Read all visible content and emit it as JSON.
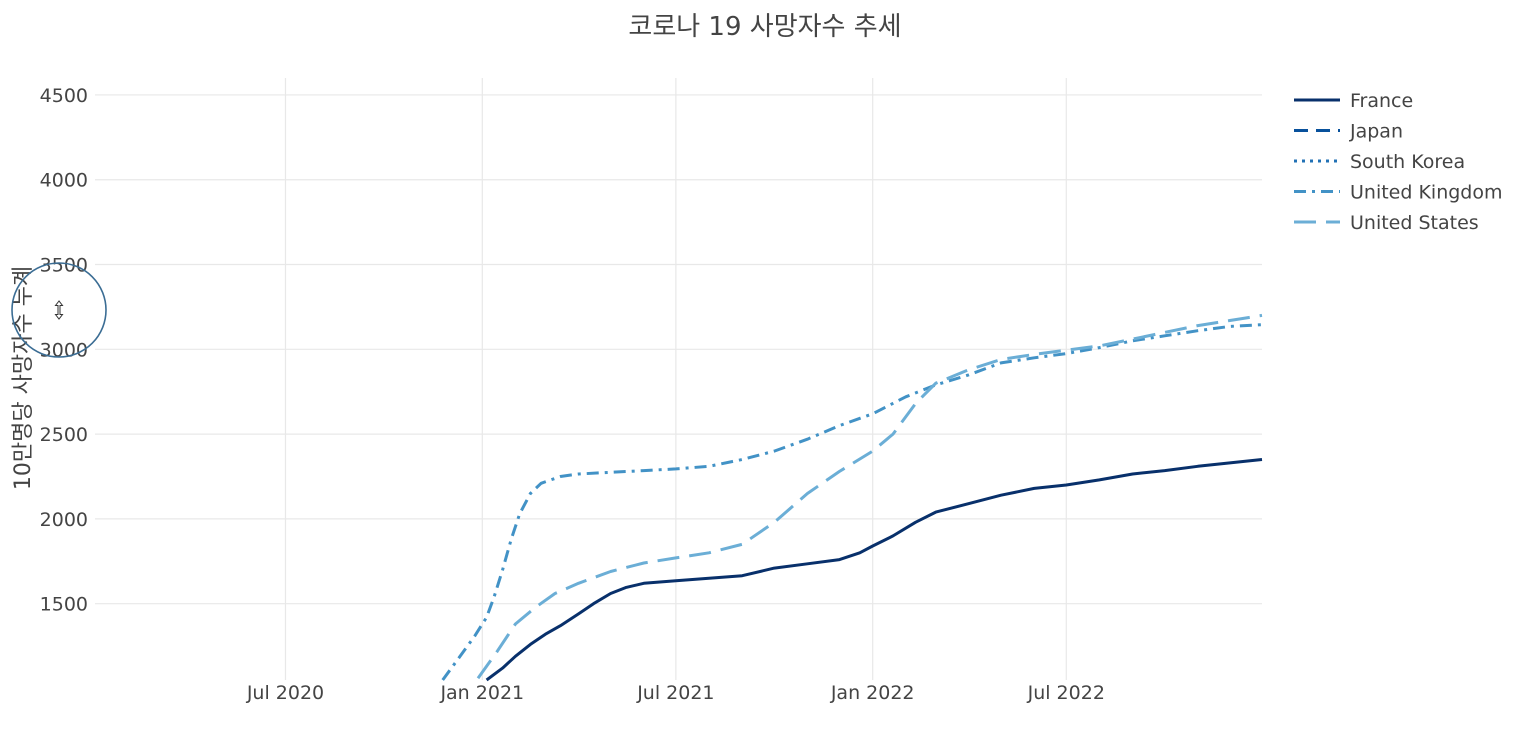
{
  "chart_data": {
    "type": "line",
    "title": "코로나 19 사망자수 추세",
    "xlabel": "",
    "ylabel": "10만명당 사망자수 누계",
    "x_axis": {
      "type": "date",
      "range": [
        "2020-03-01",
        "2022-12-31"
      ],
      "ticks": [
        {
          "value": "2020-07-01",
          "label": "Jul 2020"
        },
        {
          "value": "2021-01-01",
          "label": "Jan 2021"
        },
        {
          "value": "2021-07-01",
          "label": "Jul 2021"
        },
        {
          "value": "2022-01-01",
          "label": "Jan 2022"
        },
        {
          "value": "2022-07-01",
          "label": "Jul 2022"
        }
      ]
    },
    "y_axis": {
      "range": [
        1050,
        4600
      ],
      "ticks": [
        1500,
        2000,
        2500,
        3000,
        3500,
        4000,
        4500
      ],
      "tick_labels": [
        "1500",
        "2000",
        "2500",
        "3000",
        "3500",
        "4000",
        "4500"
      ]
    },
    "grid": true,
    "legend_position": "top-right",
    "series": [
      {
        "name": "France",
        "color": "#08306b",
        "dash": "solid",
        "points": [
          [
            "2021-01-05",
            1050
          ],
          [
            "2021-01-20",
            1120
          ],
          [
            "2021-02-01",
            1190
          ],
          [
            "2021-02-15",
            1260
          ],
          [
            "2021-03-01",
            1320
          ],
          [
            "2021-03-15",
            1370
          ],
          [
            "2021-04-01",
            1440
          ],
          [
            "2021-04-15",
            1500
          ],
          [
            "2021-05-01",
            1560
          ],
          [
            "2021-05-15",
            1595
          ],
          [
            "2021-06-01",
            1620
          ],
          [
            "2021-07-01",
            1635
          ],
          [
            "2021-08-01",
            1650
          ],
          [
            "2021-09-01",
            1665
          ],
          [
            "2021-10-01",
            1710
          ],
          [
            "2021-11-01",
            1735
          ],
          [
            "2021-12-01",
            1760
          ],
          [
            "2021-12-20",
            1800
          ],
          [
            "2022-01-01",
            1840
          ],
          [
            "2022-01-20",
            1900
          ],
          [
            "2022-02-10",
            1980
          ],
          [
            "2022-03-01",
            2040
          ],
          [
            "2022-04-01",
            2090
          ],
          [
            "2022-05-01",
            2140
          ],
          [
            "2022-06-01",
            2180
          ],
          [
            "2022-07-01",
            2200
          ],
          [
            "2022-08-01",
            2230
          ],
          [
            "2022-09-01",
            2265
          ],
          [
            "2022-10-01",
            2285
          ],
          [
            "2022-11-01",
            2310
          ],
          [
            "2022-12-01",
            2330
          ],
          [
            "2022-12-31",
            2350
          ]
        ]
      },
      {
        "name": "Japan",
        "color": "#08519c",
        "dash": "dash",
        "points": []
      },
      {
        "name": "South Korea",
        "color": "#2171b5",
        "dash": "dot",
        "points": []
      },
      {
        "name": "United Kingdom",
        "color": "#4292c6",
        "dash": "dashdot",
        "points": [
          [
            "2020-11-25",
            1050
          ],
          [
            "2020-12-10",
            1180
          ],
          [
            "2020-12-25",
            1310
          ],
          [
            "2021-01-05",
            1420
          ],
          [
            "2021-01-12",
            1540
          ],
          [
            "2021-01-20",
            1700
          ],
          [
            "2021-01-28",
            1880
          ],
          [
            "2021-02-05",
            2030
          ],
          [
            "2021-02-15",
            2150
          ],
          [
            "2021-02-25",
            2210
          ],
          [
            "2021-03-15",
            2250
          ],
          [
            "2021-04-01",
            2265
          ],
          [
            "2021-05-01",
            2275
          ],
          [
            "2021-06-01",
            2285
          ],
          [
            "2021-07-01",
            2295
          ],
          [
            "2021-08-01",
            2310
          ],
          [
            "2021-09-01",
            2350
          ],
          [
            "2021-10-01",
            2400
          ],
          [
            "2021-11-01",
            2470
          ],
          [
            "2021-12-01",
            2550
          ],
          [
            "2022-01-01",
            2620
          ],
          [
            "2022-02-01",
            2720
          ],
          [
            "2022-03-01",
            2790
          ],
          [
            "2022-04-01",
            2850
          ],
          [
            "2022-05-01",
            2920
          ],
          [
            "2022-06-01",
            2950
          ],
          [
            "2022-07-01",
            2975
          ],
          [
            "2022-08-01",
            3010
          ],
          [
            "2022-09-01",
            3050
          ],
          [
            "2022-10-01",
            3080
          ],
          [
            "2022-11-01",
            3110
          ],
          [
            "2022-12-01",
            3135
          ],
          [
            "2022-12-31",
            3145
          ]
        ]
      },
      {
        "name": "United States",
        "color": "#6baed6",
        "dash": "longdash",
        "points": [
          [
            "2020-12-28",
            1060
          ],
          [
            "2021-01-15",
            1220
          ],
          [
            "2021-02-01",
            1380
          ],
          [
            "2021-02-20",
            1480
          ],
          [
            "2021-03-10",
            1560
          ],
          [
            "2021-04-01",
            1620
          ],
          [
            "2021-05-01",
            1690
          ],
          [
            "2021-06-01",
            1740
          ],
          [
            "2021-07-01",
            1770
          ],
          [
            "2021-08-01",
            1800
          ],
          [
            "2021-09-01",
            1850
          ],
          [
            "2021-10-01",
            1980
          ],
          [
            "2021-11-01",
            2150
          ],
          [
            "2021-12-01",
            2280
          ],
          [
            "2022-01-01",
            2400
          ],
          [
            "2022-01-20",
            2500
          ],
          [
            "2022-02-10",
            2680
          ],
          [
            "2022-03-01",
            2800
          ],
          [
            "2022-04-01",
            2880
          ],
          [
            "2022-05-01",
            2940
          ],
          [
            "2022-06-01",
            2970
          ],
          [
            "2022-07-01",
            2995
          ],
          [
            "2022-08-01",
            3020
          ],
          [
            "2022-09-01",
            3060
          ],
          [
            "2022-10-01",
            3100
          ],
          [
            "2022-11-01",
            3140
          ],
          [
            "2022-12-01",
            3170
          ],
          [
            "2022-12-31",
            3200
          ]
        ]
      }
    ]
  },
  "icons": {
    "cursor": "vertical-resize-icon"
  }
}
